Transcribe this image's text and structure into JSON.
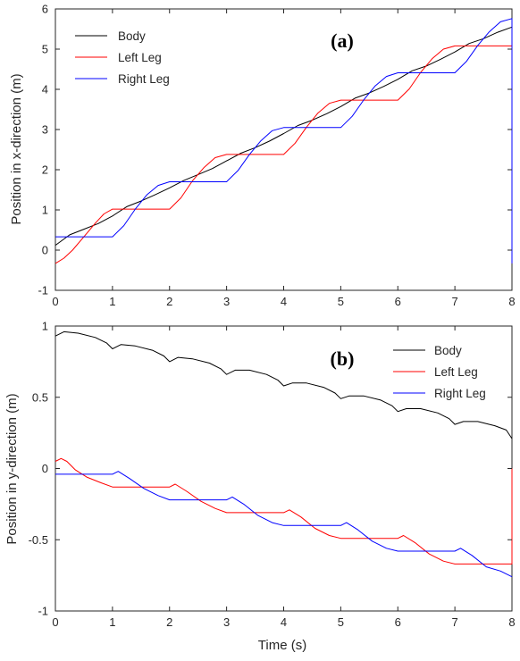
{
  "chart_data": [
    {
      "type": "line",
      "panel_label": "(a)",
      "xlabel": "",
      "ylabel": "Position in x-direction (m)",
      "xlim": [
        0,
        8
      ],
      "ylim": [
        -1,
        6
      ],
      "xticks": [
        "0",
        "1",
        "2",
        "3",
        "4",
        "5",
        "6",
        "7",
        "8"
      ],
      "yticks": [
        "-1",
        "0",
        "1",
        "2",
        "3",
        "4",
        "5",
        "6"
      ],
      "legend_position": "top-left",
      "grid": false,
      "series": [
        {
          "name": "Body",
          "color": "#000000",
          "x": [
            0,
            0.25,
            0.5,
            0.75,
            1,
            1.25,
            1.5,
            1.75,
            2,
            2.25,
            2.5,
            2.75,
            3,
            3.25,
            3.5,
            3.75,
            4,
            4.25,
            4.5,
            4.75,
            5,
            5.25,
            5.5,
            5.75,
            6,
            6.25,
            6.5,
            6.75,
            7,
            7.25,
            7.5,
            7.75,
            8
          ],
          "y": [
            0.12,
            0.38,
            0.52,
            0.66,
            0.85,
            1.08,
            1.22,
            1.38,
            1.55,
            1.73,
            1.88,
            2.03,
            2.22,
            2.41,
            2.55,
            2.71,
            2.9,
            3.1,
            3.23,
            3.39,
            3.57,
            3.78,
            3.91,
            4.07,
            4.25,
            4.46,
            4.58,
            4.75,
            4.93,
            5.14,
            5.26,
            5.42,
            5.55
          ]
        },
        {
          "name": "Left Leg",
          "color": "#ff0000",
          "x": [
            0,
            0.15,
            0.3,
            0.5,
            0.7,
            0.85,
            1,
            1.3,
            1.6,
            2,
            2.2,
            2.4,
            2.6,
            2.8,
            3,
            3.3,
            3.6,
            4,
            4.2,
            4.4,
            4.6,
            4.8,
            5,
            5.3,
            5.6,
            6,
            6.2,
            6.4,
            6.6,
            6.8,
            7,
            7.3,
            7.6,
            8,
            8
          ],
          "y": [
            -0.33,
            -0.2,
            0,
            0.33,
            0.67,
            0.9,
            1.02,
            1.02,
            1.02,
            1.02,
            1.3,
            1.72,
            2.05,
            2.3,
            2.38,
            2.38,
            2.38,
            2.38,
            2.66,
            3.06,
            3.41,
            3.65,
            3.73,
            3.73,
            3.73,
            3.73,
            4.01,
            4.42,
            4.76,
            5.0,
            5.08,
            5.08,
            5.08,
            5.08,
            -0.33
          ]
        },
        {
          "name": "Right Leg",
          "color": "#0000ff",
          "x": [
            0,
            0.5,
            1,
            1.2,
            1.4,
            1.6,
            1.8,
            2,
            2.3,
            2.6,
            3,
            3.2,
            3.4,
            3.6,
            3.8,
            4,
            4.3,
            4.6,
            5,
            5.2,
            5.4,
            5.6,
            5.8,
            6,
            6.3,
            6.6,
            7,
            7.2,
            7.4,
            7.6,
            7.8,
            8,
            8
          ],
          "y": [
            0.33,
            0.33,
            0.33,
            0.61,
            1.02,
            1.37,
            1.61,
            1.7,
            1.7,
            1.7,
            1.7,
            1.98,
            2.38,
            2.72,
            2.97,
            3.05,
            3.05,
            3.05,
            3.05,
            3.33,
            3.73,
            4.08,
            4.32,
            4.41,
            4.41,
            4.41,
            4.41,
            4.69,
            5.09,
            5.43,
            5.68,
            5.76,
            -0.33
          ]
        }
      ]
    },
    {
      "type": "line",
      "panel_label": "(b)",
      "xlabel": "Time (s)",
      "ylabel": "Position in y-direction (m)",
      "xlim": [
        0,
        8
      ],
      "ylim": [
        -1,
        1
      ],
      "xticks": [
        "0",
        "1",
        "2",
        "3",
        "4",
        "5",
        "6",
        "7",
        "8"
      ],
      "yticks": [
        "-1",
        "-0.5",
        "0",
        "0.5",
        "1"
      ],
      "legend_position": "top-right",
      "grid": false,
      "series": [
        {
          "name": "Body",
          "color": "#000000",
          "x": [
            0,
            0.15,
            0.4,
            0.7,
            0.9,
            1,
            1.15,
            1.4,
            1.7,
            1.9,
            2,
            2.15,
            2.4,
            2.7,
            2.9,
            3,
            3.15,
            3.4,
            3.7,
            3.9,
            4,
            4.15,
            4.4,
            4.7,
            4.9,
            5,
            5.15,
            5.4,
            5.7,
            5.9,
            6,
            6.15,
            6.4,
            6.7,
            6.9,
            7,
            7.15,
            7.4,
            7.7,
            7.9,
            8
          ],
          "y": [
            0.93,
            0.96,
            0.95,
            0.92,
            0.88,
            0.84,
            0.87,
            0.86,
            0.83,
            0.79,
            0.75,
            0.78,
            0.77,
            0.74,
            0.7,
            0.66,
            0.69,
            0.69,
            0.66,
            0.62,
            0.58,
            0.6,
            0.6,
            0.57,
            0.53,
            0.49,
            0.51,
            0.51,
            0.48,
            0.44,
            0.4,
            0.42,
            0.42,
            0.39,
            0.35,
            0.31,
            0.33,
            0.33,
            0.3,
            0.27,
            0.21
          ]
        },
        {
          "name": "Left Leg",
          "color": "#ff0000",
          "x": [
            0,
            0.1,
            0.2,
            0.35,
            0.55,
            0.8,
            1,
            1.4,
            1.8,
            2,
            2.1,
            2.3,
            2.55,
            2.8,
            3,
            3.4,
            3.8,
            4,
            4.1,
            4.3,
            4.55,
            4.8,
            5,
            5.4,
            5.8,
            6,
            6.1,
            6.3,
            6.55,
            6.8,
            7,
            7.4,
            7.8,
            8,
            8
          ],
          "y": [
            0.05,
            0.07,
            0.05,
            -0.01,
            -0.06,
            -0.1,
            -0.13,
            -0.13,
            -0.13,
            -0.13,
            -0.11,
            -0.16,
            -0.23,
            -0.28,
            -0.31,
            -0.31,
            -0.31,
            -0.31,
            -0.29,
            -0.34,
            -0.42,
            -0.47,
            -0.49,
            -0.49,
            -0.49,
            -0.49,
            -0.47,
            -0.52,
            -0.6,
            -0.65,
            -0.67,
            -0.67,
            -0.67,
            -0.67,
            0.0
          ]
        },
        {
          "name": "Right Leg",
          "color": "#0000ff",
          "x": [
            0,
            0.5,
            1,
            1.1,
            1.3,
            1.55,
            1.8,
            2,
            2.4,
            2.8,
            3,
            3.1,
            3.3,
            3.55,
            3.8,
            4,
            4.4,
            4.8,
            5,
            5.1,
            5.3,
            5.55,
            5.8,
            6,
            6.4,
            6.8,
            7,
            7.1,
            7.3,
            7.55,
            7.8,
            8
          ],
          "y": [
            -0.04,
            -0.04,
            -0.04,
            -0.02,
            -0.07,
            -0.14,
            -0.19,
            -0.22,
            -0.22,
            -0.22,
            -0.22,
            -0.2,
            -0.25,
            -0.33,
            -0.38,
            -0.4,
            -0.4,
            -0.4,
            -0.4,
            -0.38,
            -0.43,
            -0.51,
            -0.56,
            -0.58,
            -0.58,
            -0.58,
            -0.58,
            -0.56,
            -0.61,
            -0.69,
            -0.72,
            -0.76
          ]
        }
      ]
    }
  ]
}
